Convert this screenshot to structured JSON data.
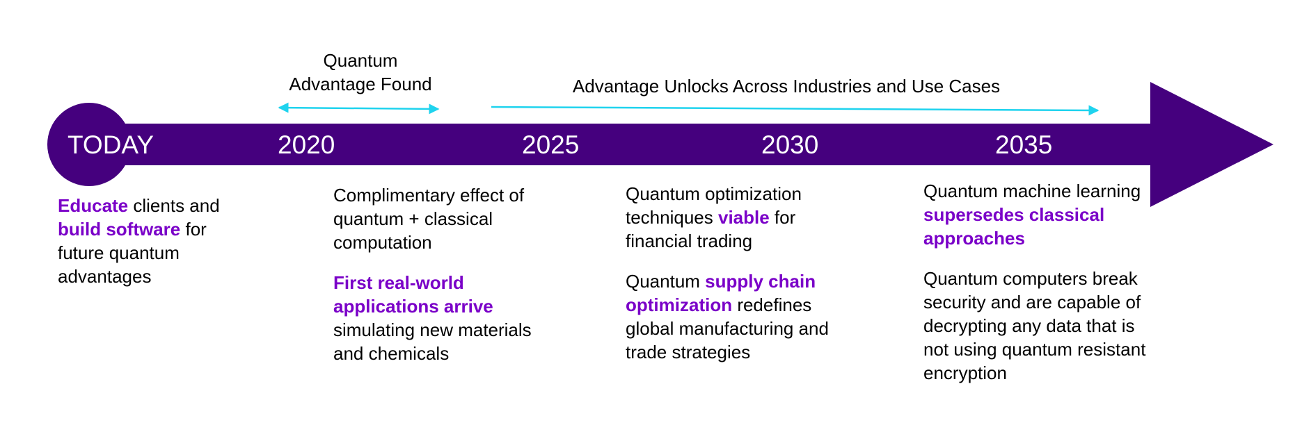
{
  "colors": {
    "arrow": "#45007E",
    "highlight": "#7A00C8",
    "range_arrow": "#1FD3EE",
    "year_text": "#FFFFFF"
  },
  "ranges": {
    "advantage_found": "Quantum\nAdvantage Found",
    "unlocks": "Advantage Unlocks Across Industries and Use Cases"
  },
  "milestones": [
    "TODAY",
    "2020",
    "2025",
    "2030",
    "2035"
  ],
  "descriptions": {
    "today": {
      "p1": {
        "a": "Educate",
        "b": " clients and ",
        "c": "build software",
        "d": " for future quantum advantages"
      }
    },
    "y2020": {
      "p1": "Complimentary effect of quantum + classical computation",
      "p2": {
        "a": "First real-world applications arrive",
        "b": " simulating new materials and chemicals"
      }
    },
    "y2025": {
      "p1": {
        "a": "Quantum optimization techniques ",
        "b": "viable",
        "c": " for financial trading"
      },
      "p2": {
        "a": "Quantum ",
        "b": "supply chain optimization",
        "c": " redefines global manufacturing and trade strategies"
      }
    },
    "y2030": {
      "p1": {
        "a": "Quantum machine learning ",
        "b": "supersedes classical approaches"
      },
      "p2": "Quantum computers break security and are capable of decrypting any data that is not using quantum resistant encryption"
    }
  }
}
